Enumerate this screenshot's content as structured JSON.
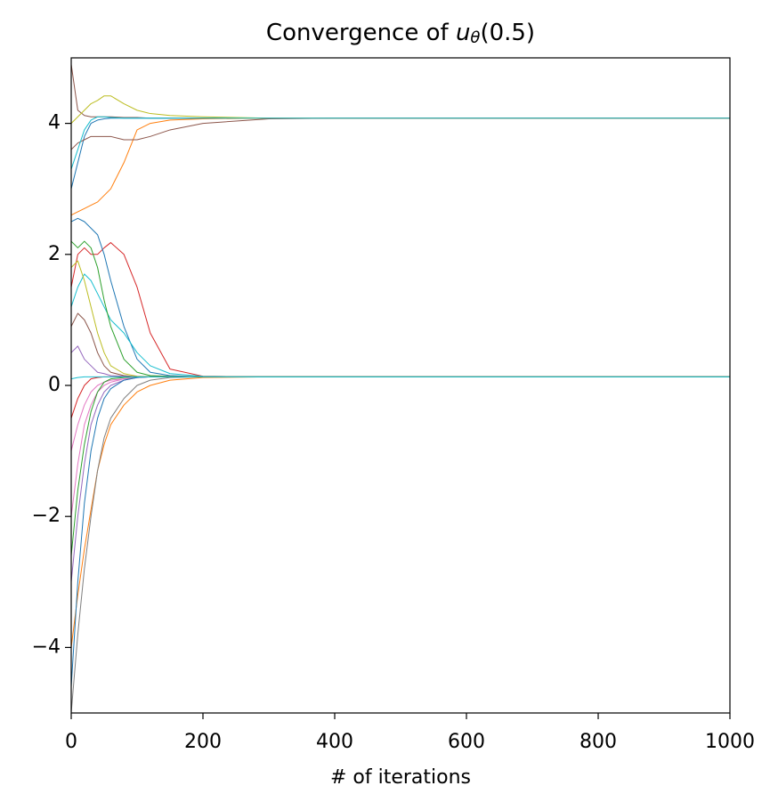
{
  "chart_data": {
    "type": "line",
    "title": {
      "prefix": "Convergence of ",
      "var": "u",
      "sub": "θ",
      "suffix": "(0.5)"
    },
    "x_label": "# of iterations",
    "x": [
      0,
      10,
      20,
      30,
      40,
      50,
      60,
      80,
      100,
      120,
      150,
      200,
      300,
      400,
      1000
    ],
    "series": [
      {
        "color": "#8c564b",
        "values": [
          4.9,
          4.2,
          4.12,
          4.1,
          4.1,
          4.1,
          4.1,
          4.09,
          4.09,
          4.08,
          4.08,
          4.08,
          4.08,
          4.08,
          4.08
        ]
      },
      {
        "color": "#1f77b4",
        "values": [
          3.0,
          3.4,
          3.8,
          4.0,
          4.05,
          4.07,
          4.08,
          4.08,
          4.08,
          4.08,
          4.08,
          4.08,
          4.08,
          4.08,
          4.08
        ]
      },
      {
        "color": "#bcbd22",
        "values": [
          4.0,
          4.1,
          4.2,
          4.3,
          4.35,
          4.42,
          4.42,
          4.3,
          4.2,
          4.15,
          4.12,
          4.1,
          4.08,
          4.08,
          4.08
        ]
      },
      {
        "color": "#ff7f0e",
        "values": [
          2.6,
          2.65,
          2.7,
          2.75,
          2.8,
          2.9,
          3.0,
          3.4,
          3.9,
          4.0,
          4.05,
          4.07,
          4.08,
          4.08,
          4.08
        ]
      },
      {
        "color": "#8c564b",
        "values": [
          3.6,
          3.7,
          3.75,
          3.8,
          3.8,
          3.8,
          3.8,
          3.75,
          3.75,
          3.8,
          3.9,
          4.0,
          4.07,
          4.08,
          4.08
        ]
      },
      {
        "color": "#17becf",
        "values": [
          3.3,
          3.6,
          3.9,
          4.05,
          4.1,
          4.1,
          4.09,
          4.08,
          4.08,
          4.08,
          4.08,
          4.08,
          4.08,
          4.08,
          4.08
        ]
      },
      {
        "color": "#d62728",
        "values": [
          1.5,
          2.0,
          2.1,
          2.0,
          2.0,
          2.1,
          2.18,
          2.0,
          1.5,
          0.8,
          0.25,
          0.14,
          0.13,
          0.13,
          0.13
        ]
      },
      {
        "color": "#1f77b4",
        "values": [
          2.5,
          2.55,
          2.5,
          2.4,
          2.3,
          2.0,
          1.6,
          0.9,
          0.4,
          0.2,
          0.15,
          0.13,
          0.13,
          0.13,
          0.13
        ]
      },
      {
        "color": "#17becf",
        "values": [
          1.2,
          1.5,
          1.7,
          1.6,
          1.4,
          1.2,
          1.0,
          0.8,
          0.5,
          0.3,
          0.18,
          0.14,
          0.13,
          0.13,
          0.13
        ]
      },
      {
        "color": "#2ca02c",
        "values": [
          2.2,
          2.1,
          2.2,
          2.1,
          1.8,
          1.3,
          0.9,
          0.4,
          0.2,
          0.15,
          0.14,
          0.13,
          0.13,
          0.13,
          0.13
        ]
      },
      {
        "color": "#9467bd",
        "values": [
          0.5,
          0.6,
          0.4,
          0.3,
          0.2,
          0.18,
          0.15,
          0.14,
          0.13,
          0.13,
          0.13,
          0.13,
          0.13,
          0.13,
          0.13
        ]
      },
      {
        "color": "#e377c2",
        "values": [
          -1.0,
          -0.6,
          -0.3,
          -0.1,
          0.0,
          0.05,
          0.08,
          0.1,
          0.12,
          0.13,
          0.13,
          0.13,
          0.13,
          0.13,
          0.13
        ]
      },
      {
        "color": "#ff7f0e",
        "values": [
          -4.0,
          -3.2,
          -2.5,
          -1.9,
          -1.3,
          -0.9,
          -0.6,
          -0.3,
          -0.1,
          0.0,
          0.08,
          0.12,
          0.13,
          0.13,
          0.13
        ]
      },
      {
        "color": "#7f7f7f",
        "values": [
          -5.0,
          -3.8,
          -2.8,
          -2.0,
          -1.3,
          -0.8,
          -0.5,
          -0.2,
          0.0,
          0.08,
          0.12,
          0.13,
          0.13,
          0.13,
          0.13
        ]
      },
      {
        "color": "#9467bd",
        "values": [
          -3.0,
          -2.0,
          -1.2,
          -0.6,
          -0.3,
          -0.1,
          0.0,
          0.08,
          0.12,
          0.13,
          0.13,
          0.13,
          0.13,
          0.13,
          0.13
        ]
      },
      {
        "color": "#e377c2",
        "values": [
          -2.0,
          -1.2,
          -0.6,
          -0.3,
          -0.1,
          0.0,
          0.05,
          0.1,
          0.12,
          0.13,
          0.13,
          0.13,
          0.13,
          0.13,
          0.13
        ]
      },
      {
        "color": "#1f77b4",
        "values": [
          -4.6,
          -3.0,
          -1.8,
          -1.0,
          -0.5,
          -0.2,
          -0.05,
          0.08,
          0.12,
          0.13,
          0.13,
          0.13,
          0.13,
          0.13,
          0.13
        ]
      },
      {
        "color": "#bcbd22",
        "values": [
          1.8,
          1.9,
          1.6,
          1.2,
          0.8,
          0.5,
          0.3,
          0.18,
          0.14,
          0.13,
          0.13,
          0.13,
          0.13,
          0.13,
          0.13
        ]
      },
      {
        "color": "#8c564b",
        "values": [
          0.9,
          1.1,
          1.0,
          0.8,
          0.5,
          0.3,
          0.2,
          0.15,
          0.13,
          0.13,
          0.13,
          0.13,
          0.13,
          0.13,
          0.13
        ]
      },
      {
        "color": "#d62728",
        "values": [
          -0.5,
          -0.2,
          0.0,
          0.1,
          0.12,
          0.13,
          0.13,
          0.13,
          0.13,
          0.13,
          0.13,
          0.13,
          0.13,
          0.13,
          0.13
        ]
      },
      {
        "color": "#2ca02c",
        "values": [
          -2.6,
          -1.6,
          -0.9,
          -0.4,
          -0.1,
          0.05,
          0.1,
          0.12,
          0.13,
          0.13,
          0.13,
          0.13,
          0.13,
          0.13,
          0.13
        ]
      },
      {
        "color": "#17becf",
        "values": [
          0.1,
          0.12,
          0.13,
          0.13,
          0.13,
          0.13,
          0.13,
          0.13,
          0.13,
          0.13,
          0.13,
          0.13,
          0.13,
          0.13,
          0.13
        ]
      }
    ],
    "xlim": [
      0,
      1000
    ],
    "xticks": [
      0,
      200,
      400,
      600,
      800,
      1000
    ],
    "ylim": [
      -5,
      5
    ],
    "yticks": [
      {
        "value": -4,
        "label": "−4"
      },
      {
        "value": -2,
        "label": "−2"
      },
      0,
      2,
      4
    ],
    "grid": false
  }
}
